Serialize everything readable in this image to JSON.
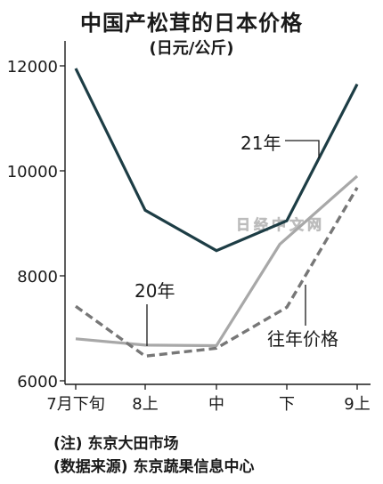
{
  "chart_data": {
    "type": "line",
    "title": "中国产松茸的日本价格",
    "subtitle": "(日元/公斤)",
    "categories": [
      "7月下旬",
      "8上",
      "中",
      "下",
      "9上"
    ],
    "ylim": [
      6000,
      12000
    ],
    "yticks": [
      6000,
      8000,
      10000,
      12000
    ],
    "grid": false,
    "series": [
      {
        "name": "21年",
        "color": "#1d3d45",
        "style": "solid",
        "points": [
          [
            0,
            11950
          ],
          [
            1,
            9250
          ],
          [
            2,
            8480
          ],
          [
            3,
            9050
          ],
          [
            4,
            11650
          ]
        ]
      },
      {
        "name": "20年",
        "color": "#a8a8a8",
        "style": "solid",
        "points": [
          [
            0,
            6800
          ],
          [
            1,
            6680
          ],
          [
            2,
            6670
          ],
          [
            2.9,
            8600
          ],
          [
            4,
            9900
          ]
        ]
      },
      {
        "name": "往年价格",
        "color": "#777777",
        "style": "dashed",
        "points": [
          [
            0,
            7420
          ],
          [
            1,
            6470
          ],
          [
            2,
            6620
          ],
          [
            3,
            7400
          ],
          [
            4,
            9680
          ]
        ]
      }
    ],
    "annotations": [
      "21年",
      "20年",
      "往年价格"
    ],
    "watermark": "日经中文网"
  },
  "notes": {
    "note1": "(注) 东京大田市场",
    "note2": "(数据来源) 东京蔬果信息中心"
  }
}
